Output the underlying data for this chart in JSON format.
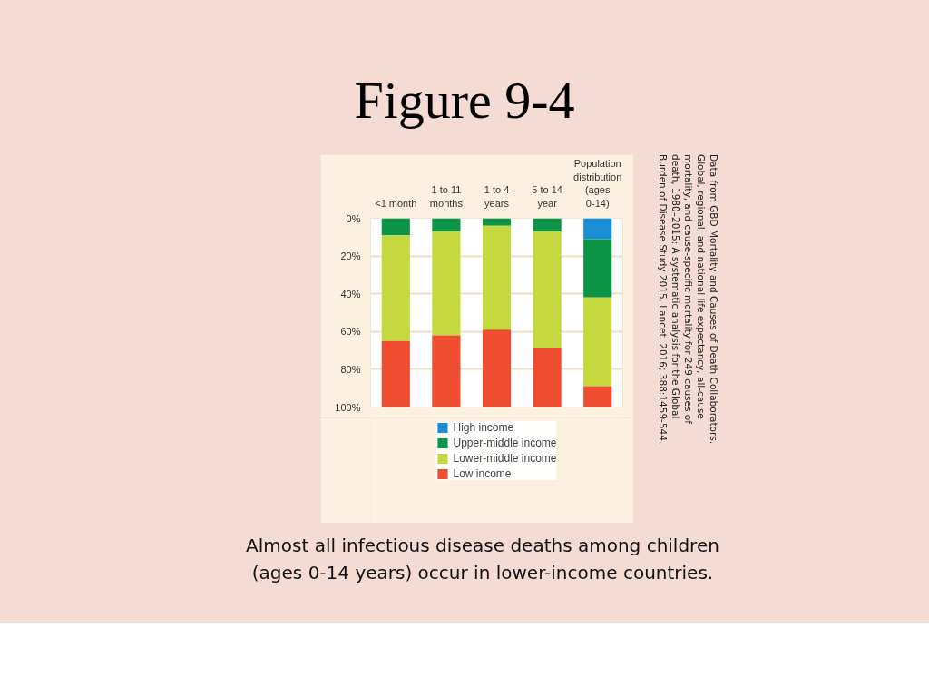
{
  "chart_data": {
    "type": "bar",
    "stacked": true,
    "title": "Figure 9-4",
    "categories": [
      "<1 month",
      "1 to 11 months",
      "1 to 4 years",
      "5 to 14 year",
      "Population distribution (ages 0-14)"
    ],
    "series": [
      {
        "name": "High income",
        "color": "#1b8fd6",
        "values": [
          0,
          0,
          0,
          0,
          11
        ]
      },
      {
        "name": "Upper-middle income",
        "color": "#0e9447",
        "values": [
          9,
          7,
          4,
          7,
          31
        ]
      },
      {
        "name": "Lower-middle income",
        "color": "#c5d93e",
        "values": [
          56,
          55,
          55,
          62,
          47
        ]
      },
      {
        "name": "Low income",
        "color": "#ee4d2f",
        "values": [
          35,
          38,
          41,
          31,
          11
        ]
      }
    ],
    "ylim": [
      100,
      0
    ],
    "yticks": [
      {
        "value": 0,
        "label": "0%"
      },
      {
        "value": 20,
        "label": "20%"
      },
      {
        "value": 40,
        "label": "40%"
      },
      {
        "value": 60,
        "label": "60%"
      },
      {
        "value": 80,
        "label": "80%"
      },
      {
        "value": 100,
        "label": "100%"
      }
    ],
    "grid": "y",
    "legend": "bottom",
    "annotations": [
      "Data from GBD Mortality and Causes of Death Collaborators. Global, regional, and national life expectancy, all-cause mortality, and cause-specific mortality for 249 causes of death, 1980–2015: A systematic analysis for the Global Burden of Disease Study 2015. Lancet. 2016; 388:1459-544.",
      "Almost all infectious disease deaths among children (ages 0-14 years) occur in lower-income countries."
    ]
  }
}
